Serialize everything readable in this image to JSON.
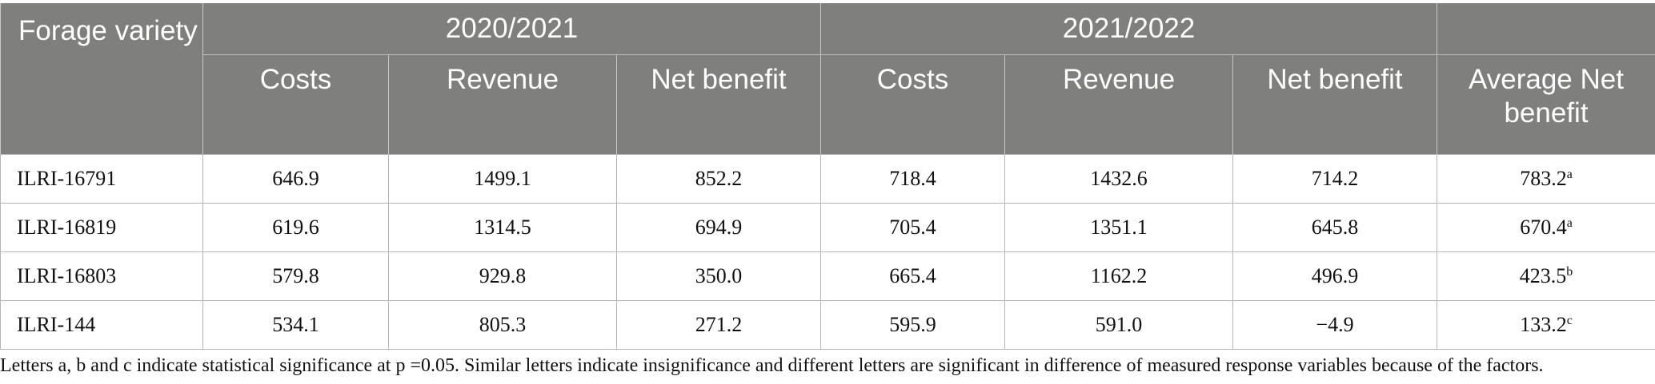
{
  "table": {
    "corner_header": "Forage variety",
    "season1": "2020/2021",
    "season2": "2021/2022",
    "sub_headers": [
      "Costs",
      "Revenue",
      "Net benefit",
      "Costs",
      "Revenue",
      "Net benefit",
      "Average Net benefit"
    ],
    "rows": [
      {
        "variety": "ILRI-16791",
        "costs_2021": "646.9",
        "revenue_2021": "1499.1",
        "net_2021": "852.2",
        "costs_2022": "718.4",
        "revenue_2022": "1432.6",
        "net_2022": "714.2",
        "avg": "783.2",
        "sig": "a"
      },
      {
        "variety": "ILRI-16819",
        "costs_2021": "619.6",
        "revenue_2021": "1314.5",
        "net_2021": "694.9",
        "costs_2022": "705.4",
        "revenue_2022": "1351.1",
        "net_2022": "645.8",
        "avg": "670.4",
        "sig": "a"
      },
      {
        "variety": "ILRI-16803",
        "costs_2021": "579.8",
        "revenue_2021": "929.8",
        "net_2021": "350.0",
        "costs_2022": "665.4",
        "revenue_2022": "1162.2",
        "net_2022": "496.9",
        "avg": "423.5",
        "sig": "b"
      },
      {
        "variety": "ILRI-144",
        "costs_2021": "534.1",
        "revenue_2021": "805.3",
        "net_2021": "271.2",
        "costs_2022": "595.9",
        "revenue_2022": "591.0",
        "net_2022": "−4.9",
        "avg": "133.2",
        "sig": "c"
      }
    ]
  },
  "footnote": "Letters a, b and c indicate statistical significance at p =0.05. Similar letters indicate insignificance and different letters are significant in difference of measured response variables because of the factors.",
  "colors": {
    "header_bg": "#7f7f7e",
    "header_text": "#ffffff",
    "grid": "#b5b5b5"
  }
}
